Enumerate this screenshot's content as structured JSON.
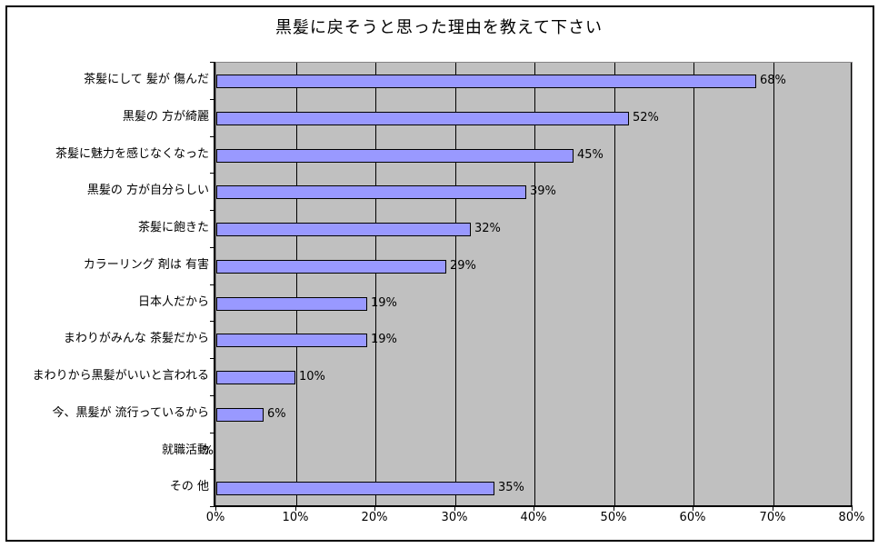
{
  "chart_data": {
    "type": "bar",
    "orientation": "horizontal",
    "title": "黒髪に戻そうと思った理由を教えて下さい",
    "categories": [
      "茶髪にして 髪が 傷んだ",
      "黒髪の 方が綺麗",
      "茶髪に魅力を感じなくなった",
      "黒髪の 方が自分らしい",
      "茶髪に飽きた",
      "カラーリング 剤は 有害",
      "日本人だから",
      "まわりがみんな 茶髪だから",
      "まわりから黒髪がいいと言われる",
      "今、黒髪が 流行っているから",
      "就職活動",
      "その 他"
    ],
    "values": [
      68,
      52,
      45,
      39,
      32,
      29,
      19,
      19,
      10,
      6,
      0,
      35
    ],
    "value_labels": [
      "68%",
      "52%",
      "45%",
      "39%",
      "32%",
      "29%",
      "19%",
      "19%",
      "10%",
      "6%",
      "%",
      "35%"
    ],
    "xlabel": "",
    "ylabel": "",
    "xlim": [
      0,
      80
    ],
    "x_tick_step": 10,
    "x_tick_labels": [
      "0%",
      "10%",
      "20%",
      "30%",
      "40%",
      "50%",
      "60%",
      "70%",
      "80%"
    ],
    "grid": true,
    "legend": false,
    "colors": {
      "bar_fill": "#9999FF",
      "bar_border": "#000000",
      "plot_bg": "#C0C0C0",
      "gridline": "#000000",
      "plot_border": "#848284",
      "axis": "#000000",
      "text": "#000000",
      "background": "#FFFFFF"
    }
  }
}
